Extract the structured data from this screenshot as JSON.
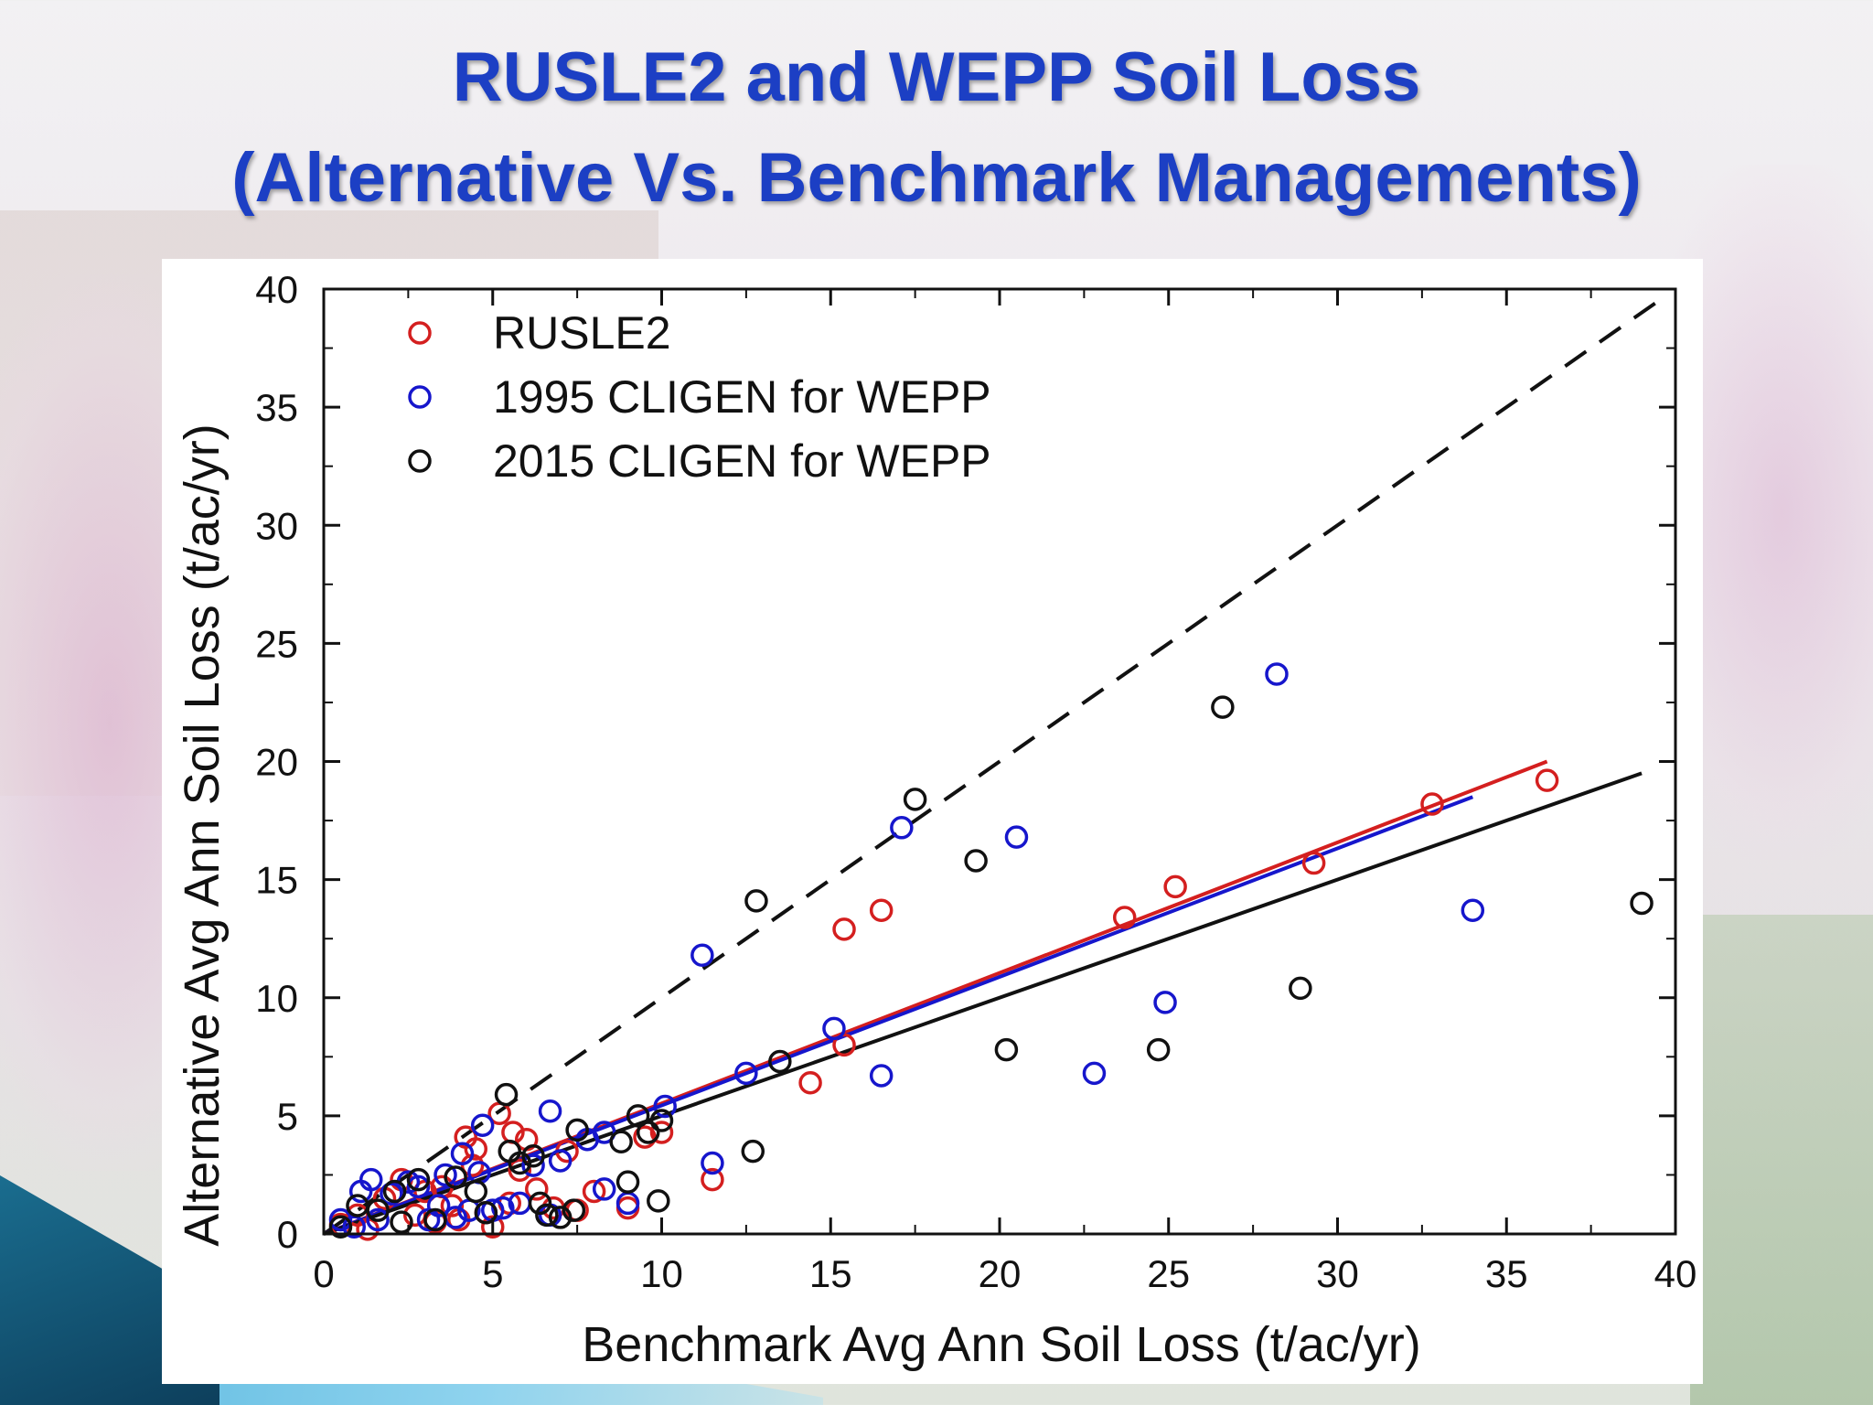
{
  "title": {
    "line1": "RUSLE2 and WEPP Soil Loss",
    "line2": "(Alternative Vs. Benchmark Managements)"
  },
  "colors": {
    "title": "#1c3fc4",
    "rusle2": "#d41f1f",
    "cligen1995": "#1616cc",
    "cligen2015": "#111111"
  },
  "chart_data": {
    "type": "scatter",
    "xlabel": "Benchmark Avg Ann Soil Loss (t/ac/yr)",
    "ylabel": "Alternative Avg Ann Soil Loss (t/ac/yr)",
    "xlim": [
      0,
      40
    ],
    "ylim": [
      0,
      40
    ],
    "xticks": [
      0,
      5,
      10,
      15,
      20,
      25,
      30,
      35,
      40
    ],
    "yticks": [
      0,
      5,
      10,
      15,
      20,
      25,
      30,
      35,
      40
    ],
    "grid": false,
    "legend_position": "top-left",
    "series": [
      {
        "name": "RUSLE2",
        "color": "#d41f1f",
        "marker": "open-circle",
        "points": [
          [
            0.5,
            0.4
          ],
          [
            1.0,
            0.8
          ],
          [
            1.3,
            0.2
          ],
          [
            1.8,
            1.5
          ],
          [
            2.3,
            2.3
          ],
          [
            2.7,
            0.8
          ],
          [
            3.0,
            1.8
          ],
          [
            3.3,
            0.5
          ],
          [
            3.5,
            2.0
          ],
          [
            3.8,
            1.2
          ],
          [
            4.0,
            0.6
          ],
          [
            4.2,
            4.1
          ],
          [
            4.4,
            2.9
          ],
          [
            4.5,
            3.6
          ],
          [
            4.8,
            0.9
          ],
          [
            5.0,
            0.3
          ],
          [
            5.2,
            5.1
          ],
          [
            5.5,
            1.3
          ],
          [
            5.6,
            4.3
          ],
          [
            5.8,
            2.7
          ],
          [
            6.0,
            4.0
          ],
          [
            6.3,
            1.9
          ],
          [
            6.8,
            1.1
          ],
          [
            7.2,
            3.5
          ],
          [
            7.5,
            1.0
          ],
          [
            8.0,
            1.8
          ],
          [
            9.0,
            1.1
          ],
          [
            9.5,
            4.1
          ],
          [
            10.0,
            4.3
          ],
          [
            11.5,
            2.3
          ],
          [
            14.4,
            6.4
          ],
          [
            15.4,
            8.0
          ],
          [
            15.4,
            12.9
          ],
          [
            16.5,
            13.7
          ],
          [
            23.7,
            13.4
          ],
          [
            25.2,
            14.7
          ],
          [
            29.3,
            15.7
          ],
          [
            32.8,
            18.2
          ],
          [
            36.2,
            19.2
          ]
        ]
      },
      {
        "name": "1995 CLIGEN for WEPP",
        "color": "#1616cc",
        "marker": "open-circle",
        "points": [
          [
            0.5,
            0.6
          ],
          [
            0.9,
            0.3
          ],
          [
            1.1,
            1.8
          ],
          [
            1.4,
            2.3
          ],
          [
            1.6,
            0.6
          ],
          [
            2.0,
            1.7
          ],
          [
            2.5,
            2.2
          ],
          [
            2.8,
            2.0
          ],
          [
            3.1,
            0.6
          ],
          [
            3.4,
            1.2
          ],
          [
            3.6,
            2.5
          ],
          [
            3.9,
            0.7
          ],
          [
            4.1,
            3.4
          ],
          [
            4.3,
            1.0
          ],
          [
            4.6,
            2.6
          ],
          [
            4.7,
            4.6
          ],
          [
            5.0,
            1.0
          ],
          [
            5.3,
            1.1
          ],
          [
            5.8,
            1.3
          ],
          [
            6.2,
            2.9
          ],
          [
            6.7,
            0.8
          ],
          [
            6.7,
            5.2
          ],
          [
            7.0,
            3.1
          ],
          [
            7.8,
            4.0
          ],
          [
            8.3,
            4.3
          ],
          [
            8.3,
            1.9
          ],
          [
            9.0,
            1.3
          ],
          [
            10.1,
            5.4
          ],
          [
            11.5,
            3.0
          ],
          [
            11.2,
            11.8
          ],
          [
            12.5,
            6.8
          ],
          [
            15.1,
            8.7
          ],
          [
            16.5,
            6.7
          ],
          [
            17.1,
            17.2
          ],
          [
            20.5,
            16.8
          ],
          [
            22.8,
            6.8
          ],
          [
            24.9,
            9.8
          ],
          [
            28.2,
            23.7
          ],
          [
            34.0,
            13.7
          ]
        ]
      },
      {
        "name": "2015 CLIGEN for WEPP",
        "color": "#111111",
        "marker": "open-circle",
        "points": [
          [
            0.5,
            0.3
          ],
          [
            1.0,
            1.2
          ],
          [
            1.6,
            1.0
          ],
          [
            2.1,
            1.8
          ],
          [
            2.3,
            0.5
          ],
          [
            2.8,
            2.3
          ],
          [
            3.3,
            0.6
          ],
          [
            3.9,
            2.4
          ],
          [
            4.5,
            1.8
          ],
          [
            4.8,
            0.9
          ],
          [
            5.4,
            5.9
          ],
          [
            5.5,
            3.5
          ],
          [
            5.8,
            3.0
          ],
          [
            6.2,
            3.3
          ],
          [
            6.4,
            1.3
          ],
          [
            6.6,
            0.8
          ],
          [
            7.0,
            0.7
          ],
          [
            7.4,
            1.0
          ],
          [
            7.5,
            4.4
          ],
          [
            8.8,
            3.9
          ],
          [
            9.0,
            2.2
          ],
          [
            9.3,
            5.0
          ],
          [
            9.6,
            4.3
          ],
          [
            9.9,
            1.4
          ],
          [
            10.0,
            4.8
          ],
          [
            12.7,
            3.5
          ],
          [
            12.8,
            14.1
          ],
          [
            13.5,
            7.3
          ],
          [
            17.5,
            18.4
          ],
          [
            19.3,
            15.8
          ],
          [
            20.2,
            7.8
          ],
          [
            24.7,
            7.8
          ],
          [
            26.6,
            22.3
          ],
          [
            28.9,
            10.4
          ],
          [
            39.0,
            14.0
          ]
        ]
      }
    ],
    "lines": [
      {
        "role": "1:1",
        "style": "dashed",
        "color": "#111111",
        "from": [
          0,
          0
        ],
        "to": [
          39.5,
          39.5
        ]
      },
      {
        "role": "RUSLE2 fit",
        "style": "solid",
        "color": "#d41f1f",
        "from": [
          0,
          0
        ],
        "to": [
          36.2,
          20.0
        ]
      },
      {
        "role": "1995 CLIGEN fit",
        "style": "solid",
        "color": "#1616cc",
        "from": [
          0,
          0
        ],
        "to": [
          34.0,
          18.5
        ]
      },
      {
        "role": "2015 CLIGEN fit",
        "style": "solid",
        "color": "#111111",
        "from": [
          0,
          0
        ],
        "to": [
          39.0,
          19.5
        ]
      }
    ]
  }
}
